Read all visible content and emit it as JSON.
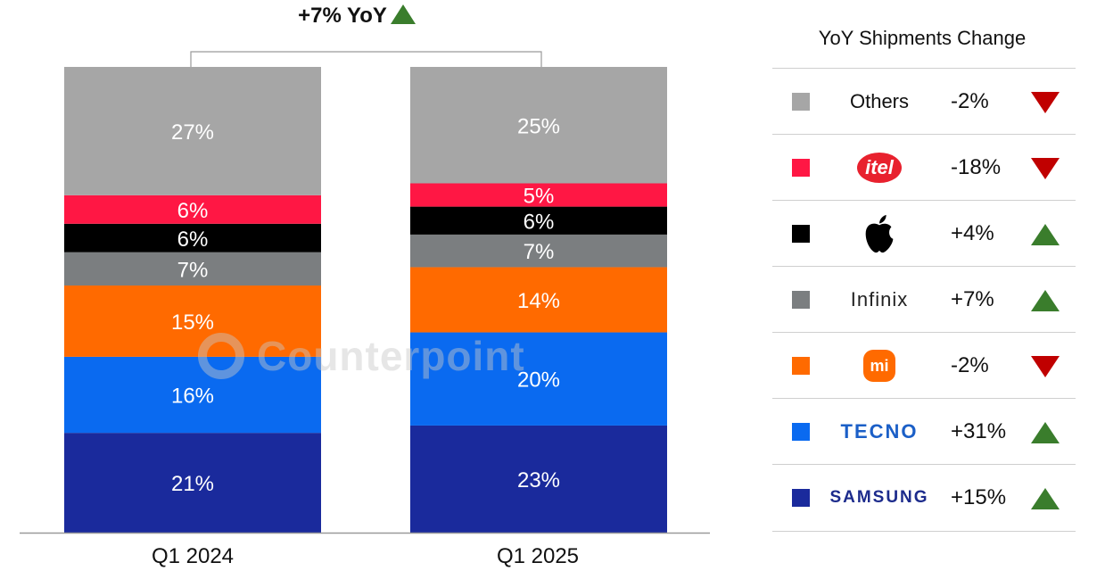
{
  "chart_data": {
    "type": "bar",
    "stacked": true,
    "normalized": true,
    "categories": [
      "Q1 2024",
      "Q1 2025"
    ],
    "series": [
      {
        "name": "SAMSUNG",
        "color": "#1a2a9c",
        "values": [
          21,
          23
        ],
        "labels": [
          "21%",
          "23%"
        ]
      },
      {
        "name": "TECNO",
        "color": "#0a6af0",
        "values": [
          16,
          20
        ],
        "labels": [
          "16%",
          "20%"
        ]
      },
      {
        "name": "Xiaomi",
        "color": "#ff6a00",
        "values": [
          15,
          14
        ],
        "labels": [
          "15%",
          "14%"
        ]
      },
      {
        "name": "Infinix",
        "color": "#7b7e80",
        "values": [
          7,
          7
        ],
        "labels": [
          "7%",
          "7%"
        ]
      },
      {
        "name": "Apple",
        "color": "#000000",
        "values": [
          6,
          6
        ],
        "labels": [
          "6%",
          "6%"
        ]
      },
      {
        "name": "itel",
        "color": "#ff1744",
        "values": [
          6,
          5
        ],
        "labels": [
          "6%",
          "5%"
        ]
      },
      {
        "name": "Others",
        "color": "#a6a6a6",
        "values": [
          27,
          25
        ],
        "labels": [
          "27%",
          "25%"
        ]
      }
    ],
    "overall_change": "+7% YoY",
    "legend_title": "YoY Shipments Change",
    "legend": [
      {
        "name": "Others",
        "brand_text": "Others",
        "change": "-2%",
        "dir": "down",
        "color": "#a6a6a6"
      },
      {
        "name": "itel",
        "brand_text": "itel",
        "change": "-18%",
        "dir": "down",
        "color": "#ff1744"
      },
      {
        "name": "Apple",
        "brand_text": "",
        "change": "+4%",
        "dir": "up",
        "color": "#000000"
      },
      {
        "name": "Infinix",
        "brand_text": "Infinix",
        "change": "+7%",
        "dir": "up",
        "color": "#7b7e80"
      },
      {
        "name": "Xiaomi",
        "brand_text": "mi",
        "change": "-2%",
        "dir": "down",
        "color": "#ff6a00"
      },
      {
        "name": "TECNO",
        "brand_text": "TECNO",
        "change": "+31%",
        "dir": "up",
        "color": "#0a6af0"
      },
      {
        "name": "SAMSUNG",
        "brand_text": "SAMSUNG",
        "change": "+15%",
        "dir": "up",
        "color": "#1a2a9c"
      }
    ]
  },
  "watermark": "Counterpoint"
}
